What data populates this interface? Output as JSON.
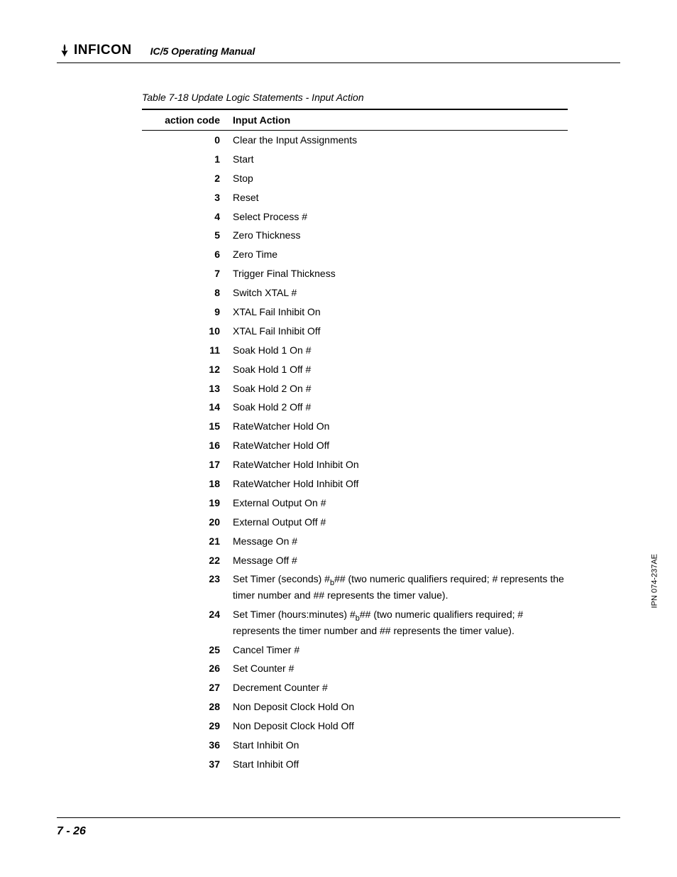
{
  "header": {
    "brand": "INFICON",
    "manual_title": "IC/5 Operating Manual"
  },
  "table": {
    "caption": "Table 7-18  Update Logic Statements - Input Action",
    "columns": [
      "action code",
      "Input Action"
    ],
    "rows": [
      {
        "code": "0",
        "action": "Clear the Input Assignments"
      },
      {
        "code": "1",
        "action": "Start"
      },
      {
        "code": "2",
        "action": "Stop"
      },
      {
        "code": "3",
        "action": "Reset"
      },
      {
        "code": "4",
        "action": "Select Process #"
      },
      {
        "code": "5",
        "action": "Zero Thickness"
      },
      {
        "code": "6",
        "action": "Zero Time"
      },
      {
        "code": "7",
        "action": "Trigger Final Thickness"
      },
      {
        "code": "8",
        "action": "Switch XTAL #"
      },
      {
        "code": "9",
        "action": "XTAL Fail Inhibit On"
      },
      {
        "code": "10",
        "action": "XTAL Fail Inhibit Off"
      },
      {
        "code": "11",
        "action": "Soak Hold 1 On #"
      },
      {
        "code": "12",
        "action": "Soak Hold 1 Off #"
      },
      {
        "code": "13",
        "action": "Soak Hold 2 On #"
      },
      {
        "code": "14",
        "action": "Soak Hold 2 Off #"
      },
      {
        "code": "15",
        "action": "RateWatcher Hold On"
      },
      {
        "code": "16",
        "action": "RateWatcher Hold Off"
      },
      {
        "code": "17",
        "action": "RateWatcher Hold Inhibit On"
      },
      {
        "code": "18",
        "action": "RateWatcher Hold Inhibit Off"
      },
      {
        "code": "19",
        "action": "External Output On #"
      },
      {
        "code": "20",
        "action": "External Output Off #"
      },
      {
        "code": "21",
        "action": "Message On #"
      },
      {
        "code": "22",
        "action": "Message Off #"
      },
      {
        "code": "23",
        "action_html": "Set Timer (seconds) #<span class='sub'>b</span>## (two numeric qualifiers required; # represents the timer number and ## represents the timer value)."
      },
      {
        "code": "24",
        "action_html": "Set Timer (hours:minutes) #<span class='sub'>b</span>## (two numeric qualifiers required; # represents the timer number and ## represents the timer value)."
      },
      {
        "code": "25",
        "action": "Cancel Timer #"
      },
      {
        "code": "26",
        "action": "Set Counter #"
      },
      {
        "code": "27",
        "action": "Decrement Counter #"
      },
      {
        "code": "28",
        "action": "Non Deposit Clock Hold On"
      },
      {
        "code": "29",
        "action": "Non Deposit Clock Hold Off"
      },
      {
        "code": "36",
        "action": "Start Inhibit On"
      },
      {
        "code": "37",
        "action": "Start Inhibit Off"
      }
    ]
  },
  "footer": {
    "page_number": "7 - 26",
    "side_label": "IPN 074-237AE"
  }
}
